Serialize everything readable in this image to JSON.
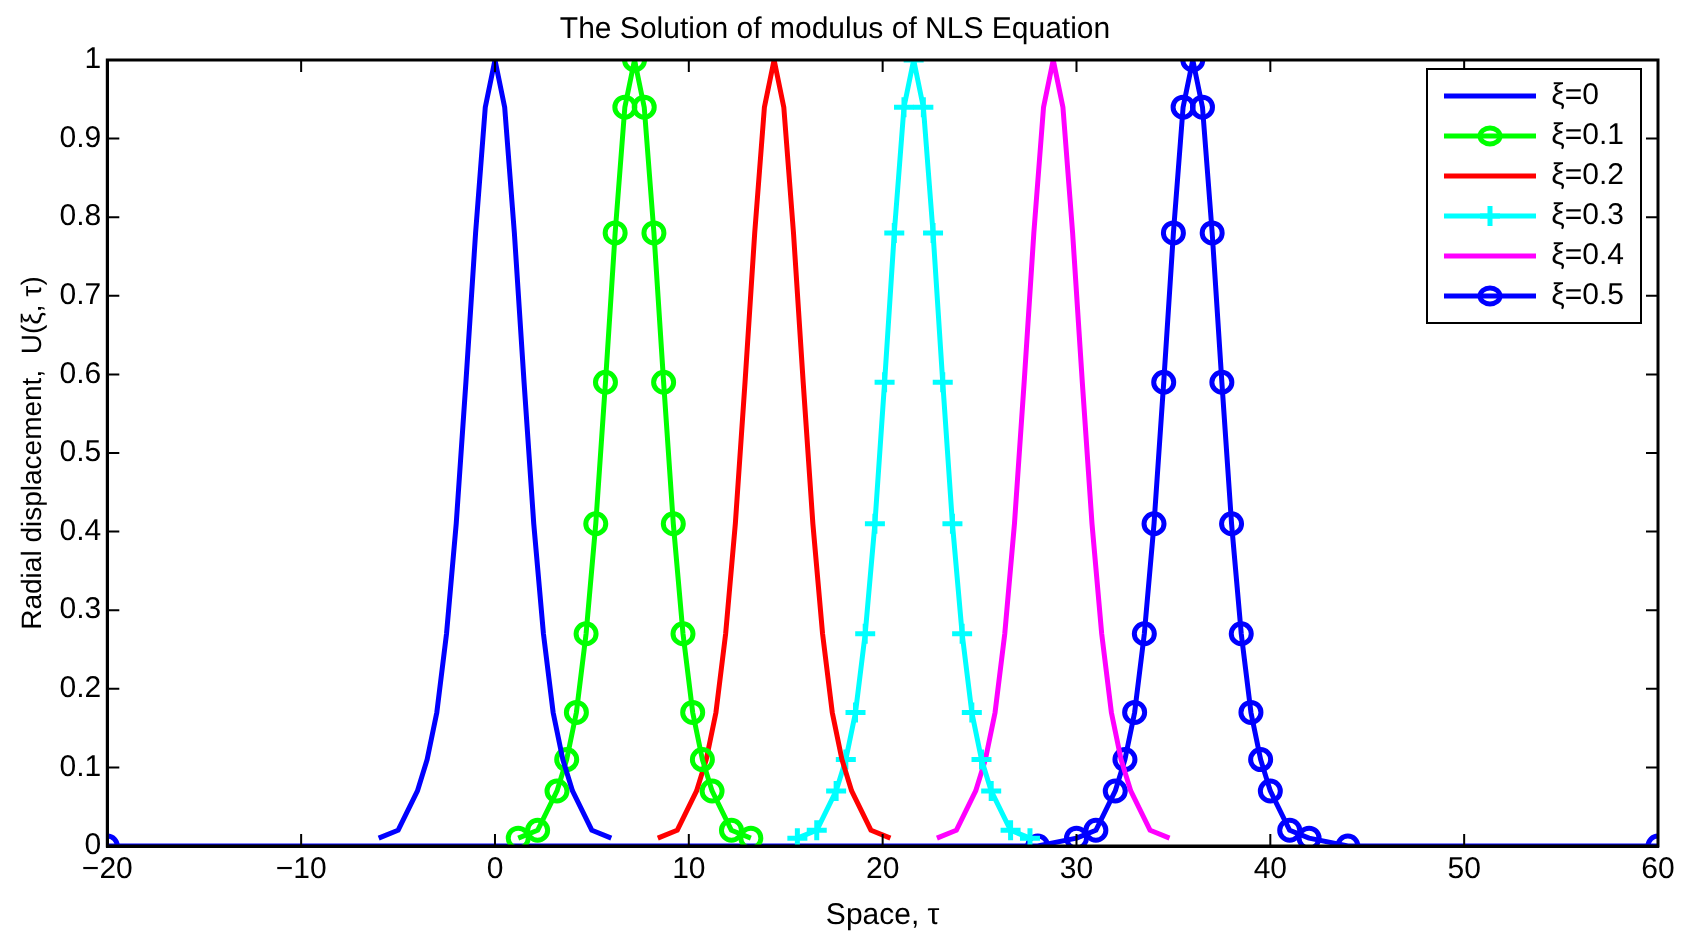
{
  "chart_data": {
    "type": "line",
    "title": "The Solution of modulus of NLS Equation",
    "xlabel": "Space, τ",
    "ylabel": "Radial displacement,  U(ξ, τ)",
    "xlim": [
      -20,
      60
    ],
    "ylim": [
      0,
      1
    ],
    "xticks": [
      -20,
      -10,
      0,
      10,
      20,
      30,
      40,
      50,
      60
    ],
    "yticks": [
      0,
      0.1,
      0.2,
      0.3,
      0.4,
      0.5,
      0.6,
      0.7,
      0.8,
      0.9,
      1
    ],
    "grid": false,
    "legend": "top right",
    "line_style": "solid",
    "series": [
      {
        "name": "ξ=0",
        "color": "#0000ff",
        "marker": "none",
        "x": [
          -6,
          -5,
          -4,
          -3.5,
          -3,
          -2.5,
          -2,
          -1.5,
          -1,
          -0.5,
          0,
          0.5,
          1,
          1.5,
          2,
          2.5,
          3,
          3.5,
          4,
          5,
          6
        ],
        "values": [
          0.01,
          0.02,
          0.07,
          0.11,
          0.17,
          0.27,
          0.41,
          0.59,
          0.78,
          0.94,
          1,
          0.94,
          0.78,
          0.59,
          0.41,
          0.27,
          0.17,
          0.11,
          0.07,
          0.02,
          0.01
        ]
      },
      {
        "name": "ξ=0.1",
        "color": "#00ff00",
        "marker": "circle",
        "x": [
          1.2,
          2.2,
          3.2,
          3.7,
          4.2,
          4.7,
          5.2,
          5.7,
          6.2,
          6.7,
          7.2,
          7.7,
          8.2,
          8.7,
          9.2,
          9.7,
          10.2,
          10.7,
          11.2,
          12.2,
          13.2
        ],
        "values": [
          0.01,
          0.02,
          0.07,
          0.11,
          0.17,
          0.27,
          0.41,
          0.59,
          0.78,
          0.94,
          1,
          0.94,
          0.78,
          0.59,
          0.41,
          0.27,
          0.17,
          0.11,
          0.07,
          0.02,
          0.01
        ]
      },
      {
        "name": "ξ=0.2",
        "color": "#ff0000",
        "marker": "none",
        "x": [
          8.4,
          9.4,
          10.4,
          10.9,
          11.4,
          11.9,
          12.4,
          12.9,
          13.4,
          13.9,
          14.4,
          14.9,
          15.4,
          15.9,
          16.4,
          16.9,
          17.4,
          17.9,
          18.4,
          19.4,
          20.4
        ],
        "values": [
          0.01,
          0.02,
          0.07,
          0.11,
          0.17,
          0.27,
          0.41,
          0.59,
          0.78,
          0.94,
          1,
          0.94,
          0.78,
          0.59,
          0.41,
          0.27,
          0.17,
          0.11,
          0.07,
          0.02,
          0.01
        ]
      },
      {
        "name": "ξ=0.3",
        "color": "#00ffff",
        "marker": "cross",
        "x": [
          15.6,
          16.6,
          17.6,
          18.1,
          18.6,
          19.1,
          19.6,
          20.1,
          20.6,
          21.1,
          21.6,
          22.1,
          22.6,
          23.1,
          23.6,
          24.1,
          24.6,
          25.1,
          25.6,
          26.6,
          27.6
        ],
        "values": [
          0.01,
          0.02,
          0.07,
          0.11,
          0.17,
          0.27,
          0.41,
          0.59,
          0.78,
          0.94,
          1,
          0.94,
          0.78,
          0.59,
          0.41,
          0.27,
          0.17,
          0.11,
          0.07,
          0.02,
          0.01
        ]
      },
      {
        "name": "ξ=0.4",
        "color": "#ff00ff",
        "marker": "none",
        "x": [
          22.8,
          23.8,
          24.8,
          25.3,
          25.8,
          26.3,
          26.8,
          27.3,
          27.8,
          28.3,
          28.8,
          29.3,
          29.8,
          30.3,
          30.8,
          31.3,
          31.8,
          32.3,
          32.8,
          33.8,
          34.8
        ],
        "values": [
          0.01,
          0.02,
          0.07,
          0.11,
          0.17,
          0.27,
          0.41,
          0.59,
          0.78,
          0.94,
          1,
          0.94,
          0.78,
          0.59,
          0.41,
          0.27,
          0.17,
          0.11,
          0.07,
          0.02,
          0.01
        ]
      },
      {
        "name": "ξ=0.5",
        "color": "#0000ff",
        "marker": "circle",
        "x": [
          -20,
          28,
          30,
          31,
          32,
          32.5,
          33,
          33.5,
          34,
          34.5,
          35,
          35.5,
          36,
          36.5,
          37,
          37.5,
          38,
          38.5,
          39,
          39.5,
          40,
          41,
          42,
          44,
          60
        ],
        "values": [
          0,
          0,
          0.01,
          0.02,
          0.07,
          0.11,
          0.17,
          0.27,
          0.41,
          0.59,
          0.78,
          0.94,
          1,
          0.94,
          0.78,
          0.59,
          0.41,
          0.27,
          0.17,
          0.11,
          0.07,
          0.02,
          0.01,
          0,
          0
        ]
      }
    ]
  }
}
